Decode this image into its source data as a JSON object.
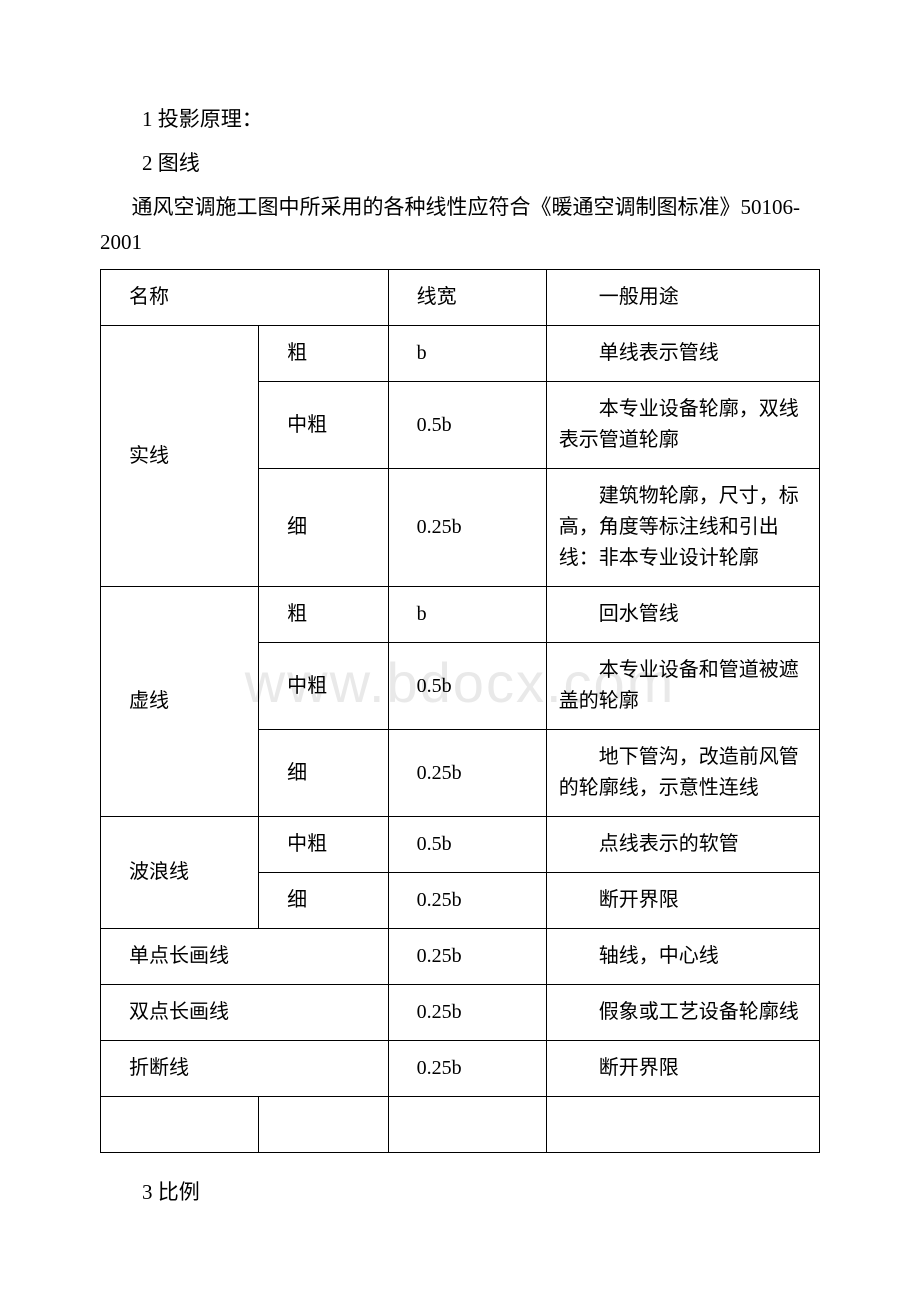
{
  "watermark": "www.bdocx.com",
  "paragraphs": {
    "p1": "1 投影原理：",
    "p2": "2 图线",
    "p3": " 通风空调施工图中所采用的各种线性应符合《暖通空调制图标准》50106-2001",
    "p4": "3 比例"
  },
  "table": {
    "headers": {
      "name": "名称",
      "width": "线宽",
      "use": "一般用途"
    },
    "groups": [
      {
        "name": "实线",
        "rows": [
          {
            "sub": "粗",
            "width": "b",
            "use": "单线表示管线"
          },
          {
            "sub": "中粗",
            "width": "0.5b",
            "use": "本专业设备轮廓，双线表示管道轮廓"
          },
          {
            "sub": "细",
            "width": "0.25b",
            "use": "建筑物轮廓，尺寸，标高，角度等标注线和引出线：非本专业设计轮廓"
          }
        ]
      },
      {
        "name": "虚线",
        "rows": [
          {
            "sub": "粗",
            "width": "b",
            "use": "回水管线"
          },
          {
            "sub": "中粗",
            "width": "0.5b",
            "use": "本专业设备和管道被遮盖的轮廓"
          },
          {
            "sub": "细",
            "width": "0.25b",
            "use": "地下管沟，改造前风管的轮廓线，示意性连线"
          }
        ]
      },
      {
        "name": "波浪线",
        "rows": [
          {
            "sub": "中粗",
            "width": "0.5b",
            "use": "点线表示的软管"
          },
          {
            "sub": "细",
            "width": "0.25b",
            "use": "断开界限"
          }
        ]
      }
    ],
    "single_rows": [
      {
        "name": "单点长画线",
        "width": "0.25b",
        "use": "轴线，中心线"
      },
      {
        "name": "双点长画线",
        "width": "0.25b",
        "use": "假象或工艺设备轮廓线"
      },
      {
        "name": "折断线",
        "width": "0.25b",
        "use": "断开界限"
      }
    ]
  }
}
